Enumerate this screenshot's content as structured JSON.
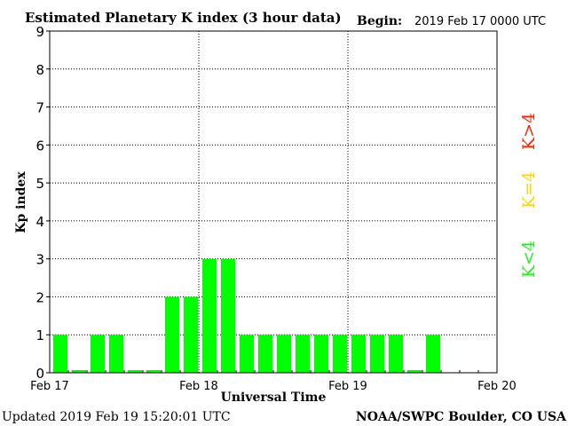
{
  "chart_data": {
    "type": "bar",
    "title": "Estimated Planetary K index (3 hour data)",
    "begin_label": "Begin:",
    "begin_value": "2019 Feb 17 0000 UTC",
    "xlabel": "Universal Time",
    "ylabel": "Kp index",
    "ylim": [
      0,
      9
    ],
    "yticks": [
      "0",
      "1",
      "2",
      "3",
      "4",
      "5",
      "6",
      "7",
      "8",
      "9"
    ],
    "xticks": [
      "Feb 17",
      "Feb 18",
      "Feb 19",
      "Feb 20"
    ],
    "bins_per_day": 8,
    "days": 3,
    "values": [
      1,
      0.07,
      1,
      1,
      0.07,
      0.07,
      2,
      2,
      3,
      3,
      1,
      1,
      1,
      1,
      1,
      1,
      1,
      1,
      1,
      0.07,
      1
    ],
    "grid": true,
    "legend": [
      {
        "label": "K<4",
        "color": "#22ee22"
      },
      {
        "label": "K=4",
        "color": "#ffd400"
      },
      {
        "label": "K>4",
        "color": "#ff2200"
      }
    ],
    "bar_color": "#00ff00"
  },
  "footer": {
    "updated": "Updated 2019 Feb 19 15:20:01 UTC",
    "credit": "NOAA/SWPC Boulder, CO USA"
  }
}
